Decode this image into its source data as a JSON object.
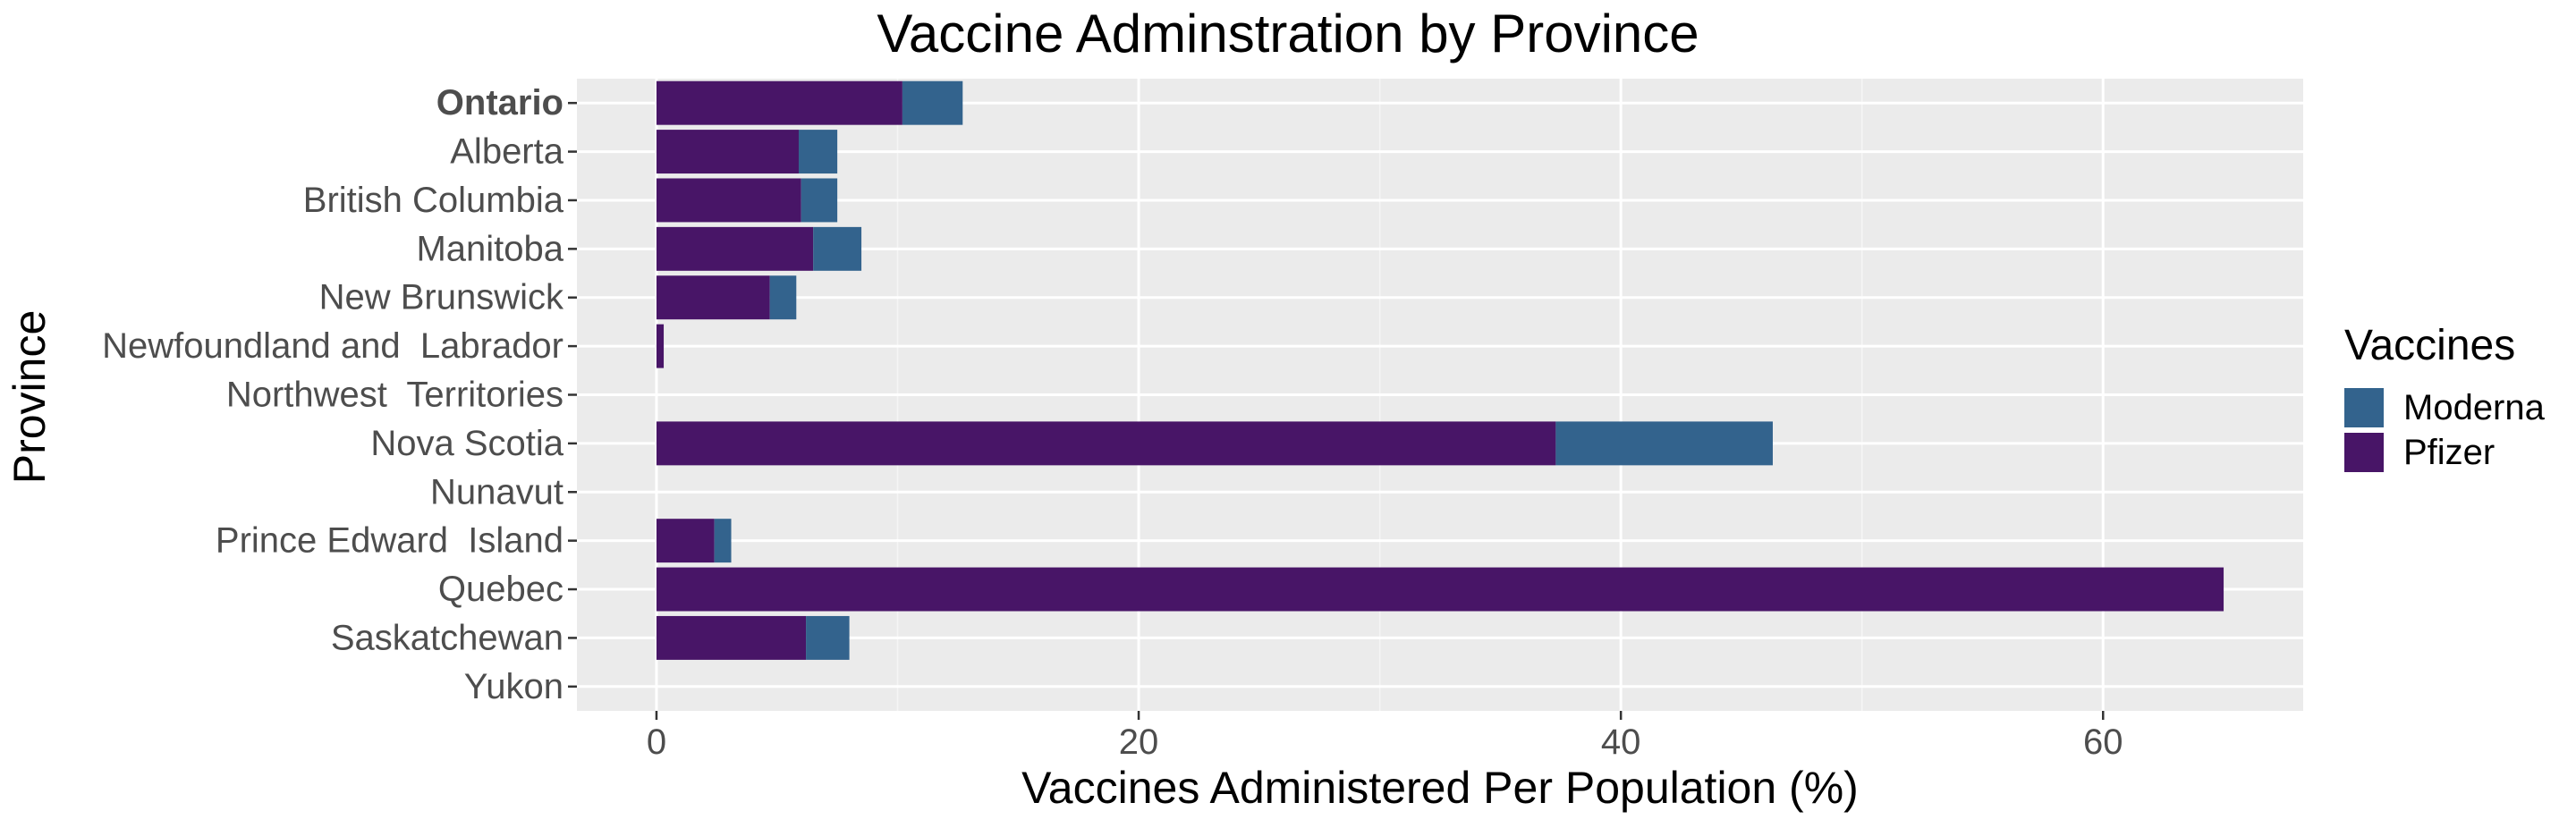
{
  "chart_data": {
    "type": "bar",
    "orientation": "horizontal",
    "stacked": true,
    "title": "Vaccine Adminstration by Province",
    "xlabel": "Vaccines Administered Per Population (%)",
    "ylabel": "Province",
    "xlim": [
      -3.3,
      68.3
    ],
    "x_ticks": [
      0,
      20,
      40,
      60
    ],
    "grid": true,
    "legend_position": "right",
    "legend_title": "Vaccines",
    "categories": [
      "Ontario",
      "Alberta",
      "British Columbia",
      "Manitoba",
      "New Brunswick",
      "Newfoundland and  Labrador",
      "Northwest  Territories",
      "Nova Scotia",
      "Nunavut",
      "Prince Edward  Island",
      "Quebec",
      "Saskatchewan",
      "Yukon"
    ],
    "highlight_category": "Ontario",
    "series": [
      {
        "name": "Pfizer",
        "color": "#481567",
        "values": [
          10.2,
          5.9,
          6.0,
          6.5,
          4.7,
          0.3,
          0,
          37.3,
          0,
          2.4,
          65.0,
          6.2,
          0
        ]
      },
      {
        "name": "Moderna",
        "color": "#33638D",
        "values": [
          2.5,
          1.6,
          1.5,
          2.0,
          1.1,
          0,
          0,
          9.0,
          0,
          0.7,
          0,
          1.8,
          0
        ]
      }
    ],
    "legend_order": [
      "Moderna",
      "Pfizer"
    ],
    "colors": {
      "panel_background": "#EBEBEB",
      "grid_major": "#FFFFFF",
      "grid_minor": "#F5F5F5",
      "tick_text": "#4D4D4D",
      "title_text": "#000000"
    }
  }
}
